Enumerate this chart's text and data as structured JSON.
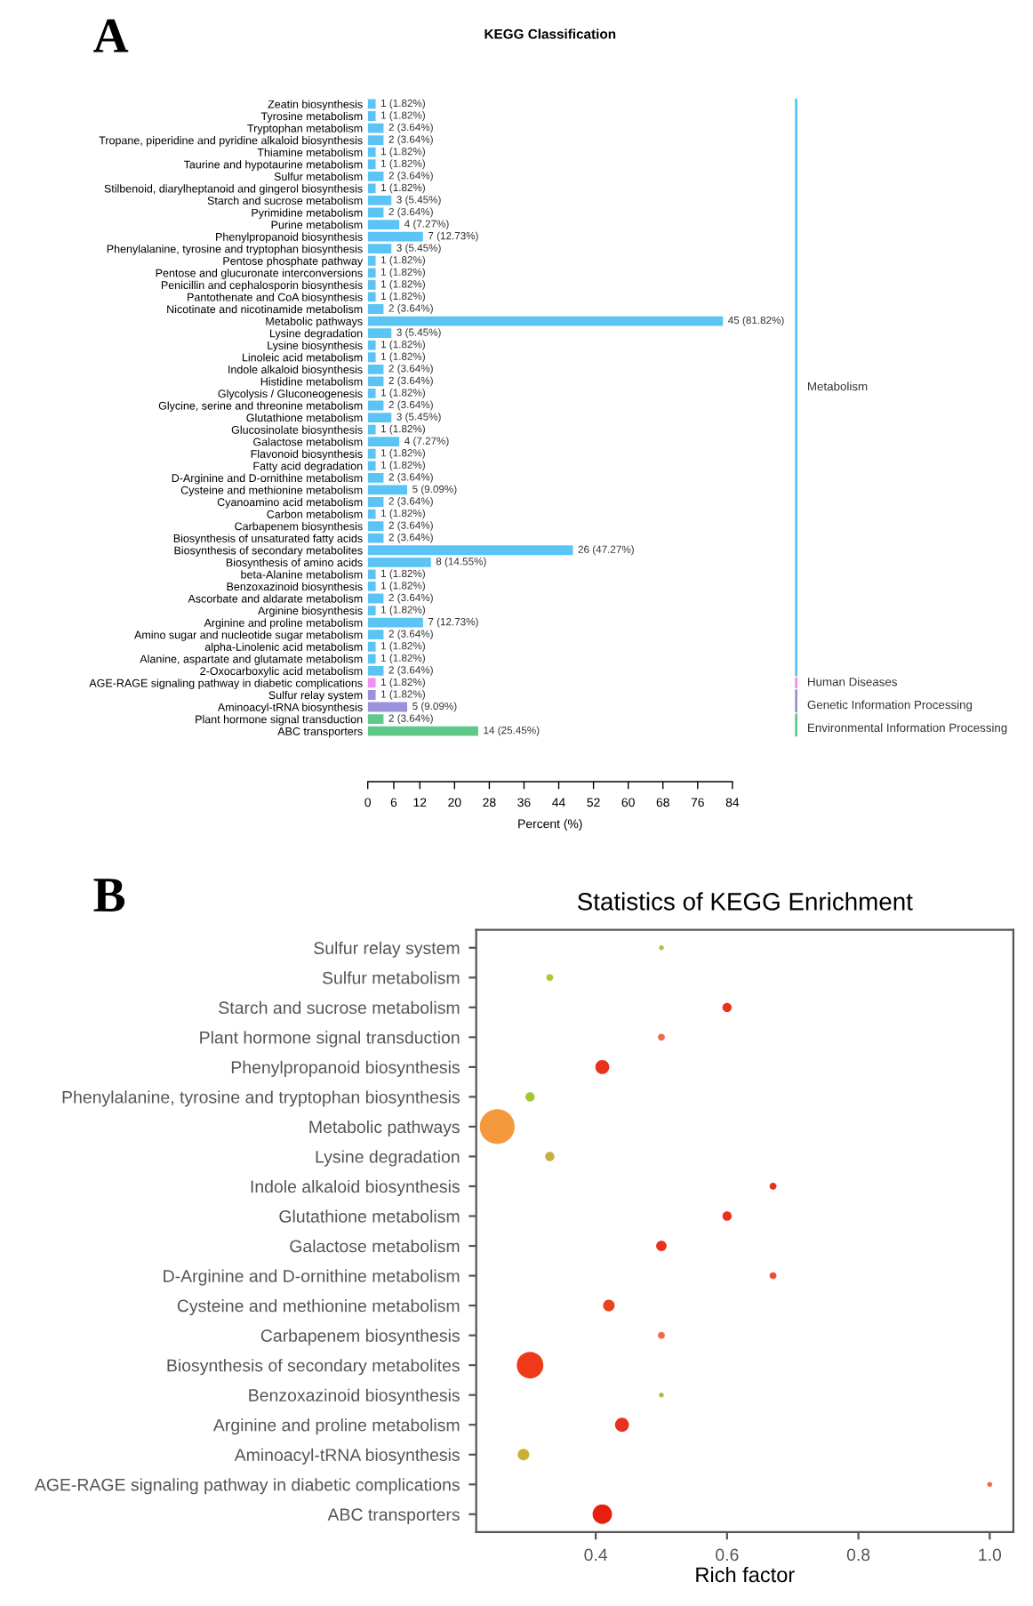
{
  "chart_data": [
    {
      "type": "bar",
      "orientation": "horizontal",
      "title": "KEGG Classification",
      "xlabel": "Percent (%)",
      "annotations": [
        "A"
      ],
      "categories": [
        "Zeatin biosynthesis",
        "Tyrosine metabolism",
        "Tryptophan metabolism",
        "Tropane, piperidine and pyridine alkaloid biosynthesis",
        "Thiamine metabolism",
        "Taurine and hypotaurine metabolism",
        "Sulfur metabolism",
        "Stilbenoid, diarylheptanoid and gingerol biosynthesis",
        "Starch and sucrose metabolism",
        "Pyrimidine metabolism",
        "Purine metabolism",
        "Phenylpropanoid biosynthesis",
        "Phenylalanine, tyrosine and tryptophan biosynthesis",
        "Pentose phosphate pathway",
        "Pentose and glucuronate interconversions",
        "Penicillin and cephalosporin biosynthesis",
        "Pantothenate and CoA biosynthesis",
        "Nicotinate and nicotinamide metabolism",
        "Metabolic pathways",
        "Lysine degradation",
        "Lysine biosynthesis",
        "Linoleic acid metabolism",
        "Indole alkaloid biosynthesis",
        "Histidine metabolism",
        "Glycolysis / Gluconeogenesis",
        "Glycine, serine and threonine metabolism",
        "Glutathione metabolism",
        "Glucosinolate biosynthesis",
        "Galactose metabolism",
        "Flavonoid biosynthesis",
        "Fatty acid degradation",
        "D-Arginine and D-ornithine metabolism",
        "Cysteine and methionine metabolism",
        "Cyanoamino acid metabolism",
        "Carbon metabolism",
        "Carbapenem biosynthesis",
        "Biosynthesis of unsaturated fatty acids",
        "Biosynthesis of secondary metabolites",
        "Biosynthesis of amino acids",
        "beta-Alanine metabolism",
        "Benzoxazinoid biosynthesis",
        "Ascorbate and aldarate metabolism",
        "Arginine biosynthesis",
        "Arginine and proline metabolism",
        "Amino sugar and nucleotide sugar metabolism",
        "alpha-Linolenic acid metabolism",
        "Alanine, aspartate and glutamate metabolism",
        "2-Oxocarboxylic acid metabolism",
        "AGE-RAGE signaling pathway in diabetic complications",
        "Sulfur relay system",
        "Aminoacyl-tRNA biosynthesis",
        "Plant hormone signal transduction",
        "ABC transporters"
      ],
      "series": [
        {
          "name": "Metabolism",
          "color": "#5bc4f5",
          "values": [
            1.82,
            1.82,
            3.64,
            3.64,
            1.82,
            1.82,
            3.64,
            1.82,
            5.45,
            3.64,
            7.27,
            12.73,
            5.45,
            1.82,
            1.82,
            1.82,
            1.82,
            3.64,
            81.82,
            5.45,
            1.82,
            1.82,
            3.64,
            3.64,
            1.82,
            3.64,
            5.45,
            1.82,
            7.27,
            1.82,
            1.82,
            3.64,
            9.09,
            3.64,
            1.82,
            3.64,
            3.64,
            47.27,
            14.55,
            1.82,
            1.82,
            3.64,
            1.82,
            12.73,
            3.64,
            1.82,
            1.82,
            3.64,
            null,
            null,
            null,
            null,
            null
          ],
          "value_labels": [
            "1 (1.82%)",
            "1 (1.82%)",
            "2 (3.64%)",
            "2 (3.64%)",
            "1 (1.82%)",
            "1 (1.82%)",
            "2 (3.64%)",
            "1 (1.82%)",
            "3 (5.45%)",
            "2 (3.64%)",
            "4 (7.27%)",
            "7 (12.73%)",
            "3 (5.45%)",
            "1 (1.82%)",
            "1 (1.82%)",
            "1 (1.82%)",
            "1 (1.82%)",
            "2 (3.64%)",
            "45 (81.82%)",
            "3 (5.45%)",
            "1 (1.82%)",
            "1 (1.82%)",
            "2 (3.64%)",
            "2 (3.64%)",
            "1 (1.82%)",
            "2 (3.64%)",
            "3 (5.45%)",
            "1 (1.82%)",
            "4 (7.27%)",
            "1 (1.82%)",
            "1 (1.82%)",
            "2 (3.64%)",
            "5 (9.09%)",
            "2 (3.64%)",
            "1 (1.82%)",
            "2 (3.64%)",
            "2 (3.64%)",
            "26 (47.27%)",
            "8 (14.55%)",
            "1 (1.82%)",
            "1 (1.82%)",
            "2 (3.64%)",
            "1 (1.82%)",
            "7 (12.73%)",
            "2 (3.64%)",
            "1 (1.82%)",
            "1 (1.82%)",
            "2 (3.64%)",
            null,
            null,
            null,
            null,
            null
          ]
        },
        {
          "name": "Human Diseases",
          "color": "#ee90ee",
          "values": [
            null,
            null,
            null,
            null,
            null,
            null,
            null,
            null,
            null,
            null,
            null,
            null,
            null,
            null,
            null,
            null,
            null,
            null,
            null,
            null,
            null,
            null,
            null,
            null,
            null,
            null,
            null,
            null,
            null,
            null,
            null,
            null,
            null,
            null,
            null,
            null,
            null,
            null,
            null,
            null,
            null,
            null,
            null,
            null,
            null,
            null,
            null,
            null,
            1.82,
            null,
            null,
            null,
            null
          ],
          "value_labels": [
            null,
            null,
            null,
            null,
            null,
            null,
            null,
            null,
            null,
            null,
            null,
            null,
            null,
            null,
            null,
            null,
            null,
            null,
            null,
            null,
            null,
            null,
            null,
            null,
            null,
            null,
            null,
            null,
            null,
            null,
            null,
            null,
            null,
            null,
            null,
            null,
            null,
            null,
            null,
            null,
            null,
            null,
            null,
            null,
            null,
            null,
            null,
            null,
            "1 (1.82%)",
            null,
            null,
            null,
            null
          ]
        },
        {
          "name": "Genetic Information Processing",
          "color": "#9b92dc",
          "values": [
            null,
            null,
            null,
            null,
            null,
            null,
            null,
            null,
            null,
            null,
            null,
            null,
            null,
            null,
            null,
            null,
            null,
            null,
            null,
            null,
            null,
            null,
            null,
            null,
            null,
            null,
            null,
            null,
            null,
            null,
            null,
            null,
            null,
            null,
            null,
            null,
            null,
            null,
            null,
            null,
            null,
            null,
            null,
            null,
            null,
            null,
            null,
            null,
            null,
            1.82,
            9.09,
            null,
            null
          ],
          "value_labels": [
            null,
            null,
            null,
            null,
            null,
            null,
            null,
            null,
            null,
            null,
            null,
            null,
            null,
            null,
            null,
            null,
            null,
            null,
            null,
            null,
            null,
            null,
            null,
            null,
            null,
            null,
            null,
            null,
            null,
            null,
            null,
            null,
            null,
            null,
            null,
            null,
            null,
            null,
            null,
            null,
            null,
            null,
            null,
            null,
            null,
            null,
            null,
            null,
            null,
            "1 (1.82%)",
            "5 (9.09%)",
            null,
            null
          ]
        },
        {
          "name": "Environmental Information Processing",
          "color": "#5ec98b",
          "values": [
            null,
            null,
            null,
            null,
            null,
            null,
            null,
            null,
            null,
            null,
            null,
            null,
            null,
            null,
            null,
            null,
            null,
            null,
            null,
            null,
            null,
            null,
            null,
            null,
            null,
            null,
            null,
            null,
            null,
            null,
            null,
            null,
            null,
            null,
            null,
            null,
            null,
            null,
            null,
            null,
            null,
            null,
            null,
            null,
            null,
            null,
            null,
            null,
            null,
            null,
            null,
            3.64,
            25.45
          ],
          "value_labels": [
            null,
            null,
            null,
            null,
            null,
            null,
            null,
            null,
            null,
            null,
            null,
            null,
            null,
            null,
            null,
            null,
            null,
            null,
            null,
            null,
            null,
            null,
            null,
            null,
            null,
            null,
            null,
            null,
            null,
            null,
            null,
            null,
            null,
            null,
            null,
            null,
            null,
            null,
            null,
            null,
            null,
            null,
            null,
            null,
            null,
            null,
            null,
            null,
            null,
            null,
            null,
            "2 (3.64%)",
            "14 (25.45%)"
          ]
        }
      ],
      "legend": "right",
      "xlim": [
        0,
        84
      ],
      "xticks": [
        0,
        6,
        12,
        20,
        28,
        36,
        44,
        52,
        60,
        68,
        76,
        84
      ],
      "tick_labels": "x",
      "grid": false
    },
    {
      "type": "bubble",
      "orientation": "horizontal",
      "title": "Statistics of KEGG Enrichment",
      "xlabel": "Rich factor",
      "annotations": [
        "B"
      ],
      "categories": [
        "Sulfur relay system",
        "Sulfur metabolism",
        "Starch and sucrose metabolism",
        "Plant hormone signal transduction",
        "Phenylpropanoid biosynthesis",
        "Phenylalanine, tyrosine and tryptophan biosynthesis",
        "Metabolic pathways",
        "Lysine degradation",
        "Indole alkaloid biosynthesis",
        "Glutathione metabolism",
        "Galactose metabolism",
        "D-Arginine and D-ornithine metabolism",
        "Cysteine and methionine metabolism",
        "Carbapenem biosynthesis",
        "Biosynthesis of secondary metabolites",
        "Benzoxazinoid biosynthesis",
        "Arginine and proline metabolism",
        "Aminoacyl-tRNA biosynthesis",
        "AGE-RAGE signaling pathway in diabetic complications",
        "ABC transporters"
      ],
      "values": [
        0.5,
        0.33,
        0.6,
        0.5,
        0.41,
        0.3,
        0.25,
        0.33,
        0.67,
        0.6,
        0.5,
        0.67,
        0.42,
        0.5,
        0.3,
        0.5,
        0.44,
        0.29,
        1.0,
        0.41
      ],
      "sizes": [
        0.02,
        0.04,
        0.07,
        0.04,
        0.16,
        0.07,
        1,
        0.07,
        0.04,
        0.07,
        0.09,
        0.04,
        0.11,
        0.04,
        0.58,
        0.02,
        0.16,
        0.11,
        0.02,
        0.31
      ],
      "colors": [
        "#a8c83a",
        "#a8c83a",
        "#e8321e",
        "#ee6a4a",
        "#e8321e",
        "#a0c830",
        "#f59a3c",
        "#c8b040",
        "#e8321e",
        "#e8321e",
        "#e8321e",
        "#ee4a3a",
        "#e8421e",
        "#ee6a4a",
        "#ee3a18",
        "#a8c040",
        "#e8321e",
        "#c8b030",
        "#ee6a4a",
        "#e81e10"
      ],
      "xlim": [
        0.218,
        1.036
      ],
      "xticks": [
        0.4,
        0.6,
        0.8,
        {
          "value": 1.0,
          "label": "1.0"
        }
      ],
      "grid": false
    }
  ]
}
